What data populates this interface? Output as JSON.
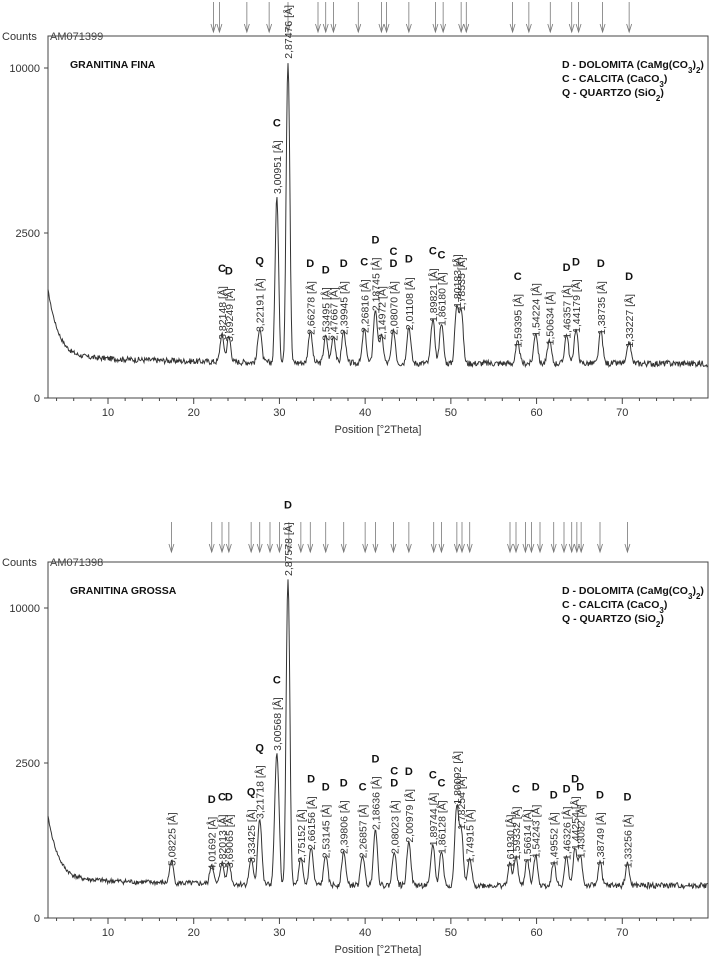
{
  "chart_data": [
    {
      "type": "line",
      "sample_id": "AM071399",
      "sample_name": "GRANITINA FINA",
      "ylabel": "Counts",
      "xlabel": "Position [°2Theta]",
      "xlim": [
        3,
        80
      ],
      "y_ticks": [
        0,
        2500,
        10000
      ],
      "x_ticks": [
        10,
        20,
        30,
        40,
        50,
        60,
        70
      ],
      "legend": [
        "D - DOLOMITA (CaMg(CO3)2)",
        "C - CALCITA   (CaCO3)",
        "Q - QUARTZO  (SiO2)"
      ],
      "reference_marks": [
        22.3,
        23.0,
        26.2,
        28.8,
        31.0,
        34.5,
        35.4,
        36.3,
        39.2,
        41.9,
        42.5,
        45.1,
        48.2,
        49.1,
        51.2,
        51.8,
        57.2,
        59.1,
        61.6,
        64.1,
        64.9,
        67.7,
        70.8
      ],
      "peaks": [
        {
          "x": 23.3,
          "y": 250,
          "label": "3,82148 [Å]",
          "phase": "C"
        },
        {
          "x": 24.1,
          "y": 230,
          "label": "3,69249 [Å]",
          "phase": "D"
        },
        {
          "x": 27.7,
          "y": 330,
          "label": "3,22191 [Å]",
          "phase": "Q"
        },
        {
          "x": 29.7,
          "y": 3600,
          "label": "3,00951 [Å]",
          "phase": "C"
        },
        {
          "x": 31.0,
          "y": 10200,
          "label": "2,87476 [Å]",
          "phase": "D"
        },
        {
          "x": 33.6,
          "y": 300,
          "label": "2,66278 [Å]",
          "phase": "D"
        },
        {
          "x": 35.4,
          "y": 240,
          "label": "2,53495 [Å]",
          "phase": "D"
        },
        {
          "x": 36.3,
          "y": 240,
          "label": "2,47667 [Å]",
          "phase": ""
        },
        {
          "x": 37.5,
          "y": 300,
          "label": "2,39945 [Å]",
          "phase": "D"
        },
        {
          "x": 39.9,
          "y": 320,
          "label": "2,26816 [Å]",
          "phase": "C"
        },
        {
          "x": 41.2,
          "y": 600,
          "label": "2,18745 [Å]",
          "phase": "D"
        },
        {
          "x": 41.9,
          "y": 250,
          "label": "2,14972 [Å]",
          "phase": ""
        },
        {
          "x": 43.3,
          "y": 300,
          "label": "2,08070 [Å]",
          "phase": "C D"
        },
        {
          "x": 45.1,
          "y": 350,
          "label": "2,01108 [Å]",
          "phase": "D"
        },
        {
          "x": 47.9,
          "y": 450,
          "label": "1,89821 [Å]",
          "phase": "C"
        },
        {
          "x": 48.9,
          "y": 400,
          "label": "1,86180 [Å]",
          "phase": "C"
        },
        {
          "x": 50.7,
          "y": 650,
          "label": "1,80183 [Å]",
          "phase": ""
        },
        {
          "x": 51.2,
          "y": 600,
          "label": "1,78535 [Å]",
          "phase": ""
        },
        {
          "x": 57.8,
          "y": 180,
          "label": "1,59395 [Å]",
          "phase": "C"
        },
        {
          "x": 59.9,
          "y": 280,
          "label": "1,54224 [Å]",
          "phase": ""
        },
        {
          "x": 61.5,
          "y": 200,
          "label": "1,50634 [Å]",
          "phase": ""
        },
        {
          "x": 63.5,
          "y": 260,
          "label": "1,46357 [Å]",
          "phase": "D"
        },
        {
          "x": 64.6,
          "y": 320,
          "label": "1,44179 [Å]",
          "phase": "D"
        },
        {
          "x": 67.5,
          "y": 300,
          "label": "1,38735 [Å]",
          "phase": "D"
        },
        {
          "x": 70.8,
          "y": 180,
          "label": "1,33227 [Å]",
          "phase": "D"
        }
      ]
    },
    {
      "type": "line",
      "sample_id": "AM071398",
      "sample_name": "GRANITINA GROSSA",
      "ylabel": "Counts",
      "xlabel": "Position [°2Theta]",
      "xlim": [
        3,
        80
      ],
      "y_ticks": [
        0,
        2500,
        10000
      ],
      "x_ticks": [
        10,
        20,
        30,
        40,
        50,
        60,
        70
      ],
      "legend": [
        "D - DOLOMITA (CaMg(CO3)2)",
        "C - CALCITA   (CaCO3)",
        "Q - QUARTZO  (SiO2)"
      ],
      "reference_marks": [
        17.4,
        22.1,
        23.3,
        24.1,
        26.7,
        27.7,
        28.9,
        30.0,
        31.1,
        32.5,
        33.6,
        35.4,
        37.5,
        40.0,
        41.2,
        43.3,
        45.1,
        48.0,
        48.9,
        50.7,
        51.3,
        52.2,
        56.9,
        57.6,
        58.7,
        59.4,
        60.4,
        62.0,
        63.2,
        64.1,
        64.7,
        65.2,
        67.4,
        70.6
      ],
      "peaks": [
        {
          "x": 17.4,
          "y": 220,
          "label": "5,08225 [Å]",
          "phase": ""
        },
        {
          "x": 22.1,
          "y": 180,
          "label": "4,01692 [Å]",
          "phase": "D"
        },
        {
          "x": 23.3,
          "y": 200,
          "label": "3,82013 [Å]",
          "phase": "C"
        },
        {
          "x": 24.1,
          "y": 200,
          "label": "3,69065 [Å]",
          "phase": "D"
        },
        {
          "x": 26.7,
          "y": 250,
          "label": "3,33425 [Å]",
          "phase": "Q"
        },
        {
          "x": 27.7,
          "y": 900,
          "label": "3,21718 [Å]",
          "phase": "Q"
        },
        {
          "x": 29.7,
          "y": 2700,
          "label": "3,00568 [Å]",
          "phase": "C"
        },
        {
          "x": 31.0,
          "y": 11800,
          "label": "2,87578 [Å]",
          "phase": "D"
        },
        {
          "x": 32.5,
          "y": 250,
          "label": "2,75152 [Å]",
          "phase": ""
        },
        {
          "x": 33.7,
          "y": 400,
          "label": "2,66156 [Å]",
          "phase": "D"
        },
        {
          "x": 35.4,
          "y": 300,
          "label": "2,53145 [Å]",
          "phase": "D"
        },
        {
          "x": 37.5,
          "y": 350,
          "label": "2,39806 [Å]",
          "phase": "D"
        },
        {
          "x": 39.7,
          "y": 300,
          "label": "2,26857 [Å]",
          "phase": "C"
        },
        {
          "x": 41.2,
          "y": 700,
          "label": "2,18636 [Å]",
          "phase": "D"
        },
        {
          "x": 43.4,
          "y": 350,
          "label": "2,08023 [Å]",
          "phase": "C D"
        },
        {
          "x": 45.1,
          "y": 500,
          "label": "2,00979 [Å]",
          "phase": "D"
        },
        {
          "x": 47.9,
          "y": 450,
          "label": "1,89744 [Å]",
          "phase": "C"
        },
        {
          "x": 48.9,
          "y": 350,
          "label": "1,86128 [Å]",
          "phase": "C"
        },
        {
          "x": 50.7,
          "y": 1200,
          "label": "1,80092 [Å]",
          "phase": ""
        },
        {
          "x": 51.2,
          "y": 700,
          "label": "1,78254 [Å]",
          "phase": ""
        },
        {
          "x": 52.2,
          "y": 250,
          "label": "1,74915 [Å]",
          "phase": ""
        },
        {
          "x": 56.9,
          "y": 200,
          "label": "1,61930 [Å]",
          "phase": ""
        },
        {
          "x": 57.6,
          "y": 280,
          "label": "1,59332 [Å]",
          "phase": "C"
        },
        {
          "x": 58.9,
          "y": 250,
          "label": "1,56614 [Å]",
          "phase": ""
        },
        {
          "x": 59.9,
          "y": 300,
          "label": "1,54243 [Å]",
          "phase": "D"
        },
        {
          "x": 62.0,
          "y": 220,
          "label": "1,49552 [Å]",
          "phase": "D"
        },
        {
          "x": 63.5,
          "y": 280,
          "label": "1,46326 [Å]",
          "phase": "D"
        },
        {
          "x": 64.5,
          "y": 400,
          "label": "1,44254 [Å]",
          "phase": "D"
        },
        {
          "x": 65.1,
          "y": 300,
          "label": "1,43082 [Å]",
          "phase": "D"
        },
        {
          "x": 67.4,
          "y": 220,
          "label": "1,38749 [Å]",
          "phase": "D"
        },
        {
          "x": 70.6,
          "y": 200,
          "label": "1,33256 [Å]",
          "phase": "D"
        }
      ]
    }
  ]
}
